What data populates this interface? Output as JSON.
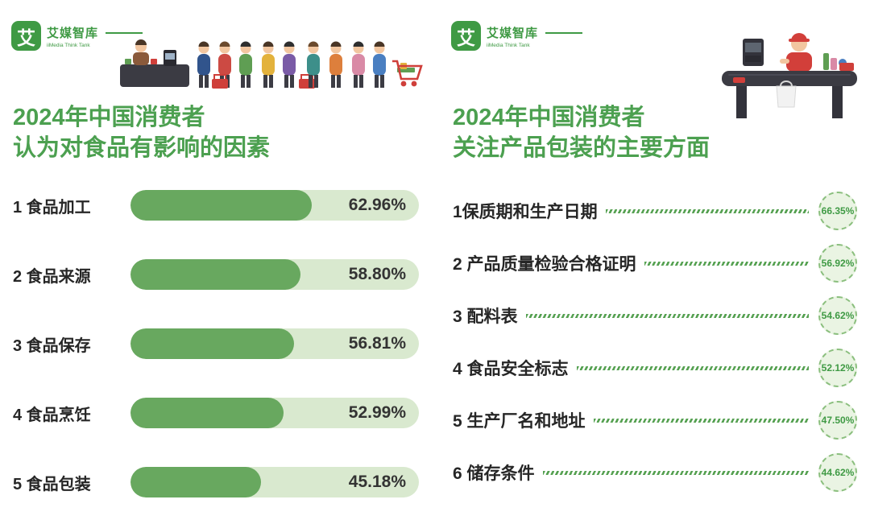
{
  "brand": {
    "logo_char": "艾",
    "name": "艾媒智库",
    "subtitle": "iiMedia Think Tank"
  },
  "colors": {
    "brand_green": "#3f9a44",
    "title_green": "#4ca050",
    "bar_fill": "#68a85f",
    "bar_track": "#d9e9cf",
    "accent_red": "#cf3f3a"
  },
  "left_chart": {
    "title_line1": "2024年中国消费者",
    "title_line2": "认为对食品有影响的因素",
    "items": [
      {
        "label": "1 食品加工",
        "value": 62.96,
        "value_label": "62.96%"
      },
      {
        "label": "2 食品来源",
        "value": 58.8,
        "value_label": "58.80%"
      },
      {
        "label": "3 食品保存",
        "value": 56.81,
        "value_label": "56.81%"
      },
      {
        "label": "4 食品烹饪",
        "value": 52.99,
        "value_label": "52.99%"
      },
      {
        "label": "5 食品包装",
        "value": 45.18,
        "value_label": "45.18%"
      }
    ]
  },
  "right_chart": {
    "title_line1": "2024年中国消费者",
    "title_line2": "关注产品包装的主要方面",
    "items": [
      {
        "label": "1保质期和生产日期",
        "value": 66.35,
        "value_label": "66.35%"
      },
      {
        "label": "2 产品质量检验合格证明",
        "value": 56.92,
        "value_label": "56.92%"
      },
      {
        "label": "3 配料表",
        "value": 54.62,
        "value_label": "54.62%"
      },
      {
        "label": "4 食品安全标志",
        "value": 52.12,
        "value_label": "52.12%"
      },
      {
        "label": "5 生产厂名和地址",
        "value": 47.5,
        "value_label": "47.50%"
      },
      {
        "label": "6 储存条件",
        "value": 44.62,
        "value_label": "44.62%"
      }
    ]
  },
  "chart_data": [
    {
      "type": "bar",
      "title": "2024年中国消费者认为对食品有影响的因素",
      "categories": [
        "食品加工",
        "食品来源",
        "食品保存",
        "食品烹饪",
        "食品包装"
      ],
      "values": [
        62.96,
        58.8,
        56.81,
        52.99,
        45.18
      ],
      "unit": "%",
      "orientation": "horizontal",
      "xlabel": "",
      "ylabel": "",
      "xlim": [
        0,
        100
      ],
      "source": "艾媒智库 iiMedia Think Tank"
    },
    {
      "type": "bar",
      "title": "2024年中国消费者关注产品包装的主要方面",
      "categories": [
        "保质期和生产日期",
        "产品质量检验合格证明",
        "配料表",
        "食品安全标志",
        "生产厂名和地址",
        "储存条件"
      ],
      "values": [
        66.35,
        56.92,
        54.62,
        52.12,
        47.5,
        44.62
      ],
      "unit": "%",
      "orientation": "horizontal",
      "style": "leader-line-to-circle-badge",
      "xlabel": "",
      "ylabel": "",
      "xlim": [
        0,
        100
      ],
      "source": "艾媒智库 iiMedia Think Tank"
    }
  ]
}
